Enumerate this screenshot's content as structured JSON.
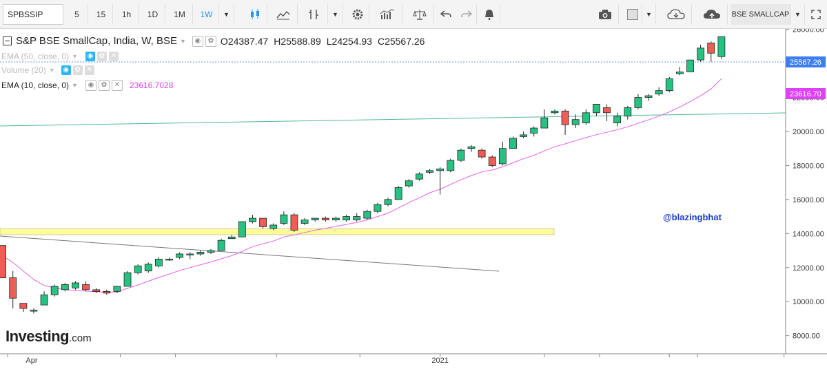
{
  "toolbar": {
    "symbol": "SPBSSIP",
    "intervals": [
      "5",
      "15",
      "1h",
      "1D",
      "1M",
      "1W"
    ],
    "active_interval": "1W",
    "symbol_name_button": "BSE SMALLCAP"
  },
  "legend": {
    "main_title": "S&P BSE SmallCap, India, W, BSE",
    "open_label": "O",
    "open": "24387.47",
    "high_label": "H",
    "high": "25588.89",
    "low_label": "L",
    "low": "24254.93",
    "close_label": "C",
    "close": "25567.26",
    "ema50": "EMA (50, close, 0)",
    "volume": "Volume (20)",
    "ema10": "EMA (10, close, 0)",
    "ema10_value": "23616.7028"
  },
  "watermark": {
    "brand": "Investing",
    "suffix": ".com"
  },
  "annotation": "@blazingbhat",
  "price_tags": {
    "last": "25567.26",
    "ema": "23616.70"
  },
  "colors": {
    "up": "#26c281",
    "down": "#f25c54",
    "ema": "#e561e6",
    "zone": "#fffc99",
    "trend_up": "#4db89c",
    "trend_down": "#777777",
    "tag_last": "#3d7ff2",
    "tag_ema": "#e040fb",
    "annotation": "#1a3ec8"
  },
  "chart_data": {
    "type": "candlestick",
    "ylim": [
      7500,
      27200
    ],
    "y_ticks": [
      8000,
      10000,
      12000,
      14000,
      16000,
      18000,
      20000,
      22000,
      24000,
      26000
    ],
    "y_tick_labels": [
      "8000.00",
      "10000.00",
      "12000.00",
      "14000.00",
      "16000.00",
      "18000.00",
      "20000.00",
      "22000.00",
      "24000.00",
      "26000.00"
    ],
    "x_labels": [
      {
        "index": 2.8,
        "label": "Apr"
      },
      {
        "index": 42.0,
        "label": "2021"
      }
    ],
    "candles": [
      [
        13300,
        13300,
        11400,
        11400
      ],
      [
        11400,
        11800,
        9600,
        10200
      ],
      [
        9900,
        9900,
        9400,
        9600
      ],
      [
        9500,
        9600,
        9300,
        9500
      ],
      [
        9800,
        10600,
        9800,
        10400
      ],
      [
        10400,
        11000,
        10300,
        10900
      ],
      [
        10700,
        11100,
        10600,
        11000
      ],
      [
        10800,
        11200,
        10700,
        11100
      ],
      [
        11000,
        11200,
        10600,
        10700
      ],
      [
        10700,
        10800,
        10500,
        10600
      ],
      [
        10600,
        10700,
        10400,
        10500
      ],
      [
        10600,
        10900,
        10500,
        10900
      ],
      [
        10900,
        11800,
        10900,
        11700
      ],
      [
        11700,
        12200,
        11600,
        12100
      ],
      [
        11800,
        12300,
        11700,
        12200
      ],
      [
        12100,
        12600,
        12000,
        12500
      ],
      [
        12500,
        12600,
        12400,
        12500
      ],
      [
        12600,
        12900,
        12500,
        12800
      ],
      [
        12800,
        12900,
        12500,
        12800
      ],
      [
        12800,
        13000,
        12700,
        12900
      ],
      [
        12900,
        13100,
        12800,
        13000
      ],
      [
        13000,
        13700,
        13000,
        13600
      ],
      [
        13700,
        13900,
        13700,
        13800
      ],
      [
        13800,
        14700,
        13800,
        14700
      ],
      [
        14700,
        15100,
        14600,
        14900
      ],
      [
        14900,
        14900,
        14300,
        14400
      ],
      [
        14300,
        14600,
        14200,
        14500
      ],
      [
        14600,
        15300,
        14500,
        15100
      ],
      [
        15100,
        15200,
        14100,
        14200
      ],
      [
        14600,
        14900,
        14500,
        14800
      ],
      [
        14800,
        14900,
        14700,
        14900
      ],
      [
        14900,
        15000,
        14700,
        14800
      ],
      [
        14800,
        15000,
        14700,
        14900
      ],
      [
        14800,
        15100,
        14700,
        15000
      ],
      [
        14800,
        15200,
        14700,
        15000
      ],
      [
        14900,
        15400,
        14800,
        15300
      ],
      [
        15300,
        15800,
        15200,
        15700
      ],
      [
        15700,
        16100,
        15600,
        16000
      ],
      [
        16000,
        16800,
        16000,
        16700
      ],
      [
        16800,
        17200,
        16700,
        17100
      ],
      [
        17200,
        17600,
        17100,
        17500
      ],
      [
        17600,
        17800,
        17500,
        17700
      ],
      [
        17700,
        17900,
        16300,
        17800
      ],
      [
        17700,
        18400,
        17600,
        18300
      ],
      [
        18300,
        19000,
        18200,
        18900
      ],
      [
        19000,
        19200,
        18800,
        19100
      ],
      [
        18900,
        19000,
        18400,
        18500
      ],
      [
        18500,
        18600,
        17900,
        18000
      ],
      [
        18100,
        19400,
        18000,
        19000
      ],
      [
        19000,
        19700,
        19000,
        19600
      ],
      [
        19700,
        20000,
        19600,
        19800
      ],
      [
        19900,
        20300,
        19700,
        20200
      ],
      [
        20200,
        21300,
        20200,
        20800
      ],
      [
        21100,
        21300,
        21000,
        21200
      ],
      [
        21200,
        21300,
        19800,
        20400
      ],
      [
        20400,
        21000,
        20200,
        20700
      ],
      [
        20500,
        21300,
        20400,
        21100
      ],
      [
        21100,
        21600,
        20900,
        21600
      ],
      [
        21400,
        21600,
        20600,
        21100
      ],
      [
        20500,
        21100,
        20300,
        20900
      ],
      [
        20900,
        21500,
        20700,
        21400
      ],
      [
        21400,
        22200,
        21300,
        22000
      ],
      [
        22000,
        22200,
        21800,
        22100
      ],
      [
        22200,
        22600,
        22100,
        22400
      ],
      [
        22400,
        23200,
        22300,
        23100
      ],
      [
        23400,
        23800,
        23300,
        23500
      ],
      [
        23500,
        24200,
        23500,
        24200
      ],
      [
        24200,
        25100,
        24100,
        24900
      ],
      [
        25200,
        25300,
        24100,
        24600
      ],
      [
        24400,
        25600,
        24250,
        25570
      ]
    ],
    "ema10": [
      12700,
      12300,
      11800,
      11300,
      10950,
      10800,
      10700,
      10650,
      10620,
      10580,
      10560,
      10570,
      10780,
      10980,
      11200,
      11420,
      11620,
      11830,
      12000,
      12170,
      12330,
      12520,
      12700,
      12950,
      13230,
      13400,
      13560,
      13800,
      13920,
      14060,
      14200,
      14310,
      14420,
      14540,
      14650,
      14800,
      15000,
      15200,
      15500,
      15820,
      16100,
      16400,
      16600,
      16890,
      17160,
      17410,
      17620,
      17740,
      17920,
      18160,
      18400,
      18600,
      18860,
      19100,
      19270,
      19460,
      19640,
      19810,
      19950,
      20110,
      20270,
      20480,
      20680,
      20900,
      21150,
      21440,
      21760,
      22100,
      22500,
      23100
    ]
  }
}
